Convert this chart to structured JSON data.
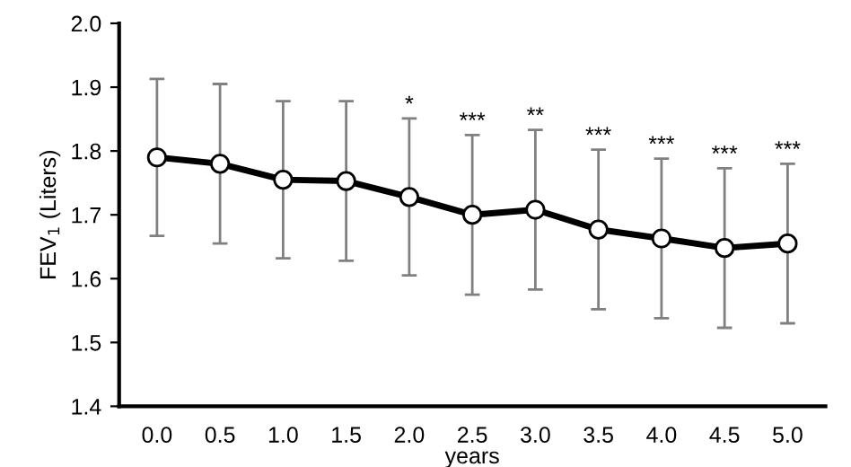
{
  "chart_data": {
    "type": "line",
    "xlabel": "years",
    "ylabel": "FEV$_{1}$ (Liters)",
    "x": [
      0.0,
      0.5,
      1.0,
      1.5,
      2.0,
      2.5,
      3.0,
      3.5,
      4.0,
      4.5,
      5.0
    ],
    "series": [
      {
        "color": "#000000",
        "values": [
          1.79,
          1.78,
          1.755,
          1.753,
          1.728,
          1.7,
          1.708,
          1.677,
          1.663,
          1.648,
          1.655
        ],
        "errors": [
          0.123,
          0.125,
          0.123,
          0.125,
          0.123,
          0.125,
          0.125,
          0.125,
          0.125,
          0.125,
          0.125
        ]
      }
    ],
    "xlim": [
      -0.3,
      5.3
    ],
    "xticks": [
      {
        "value": 0,
        "label": "0.0"
      },
      0.5,
      {
        "value": 1,
        "label": "1.0"
      },
      1.5,
      {
        "value": 2,
        "label": "2.0"
      },
      2.5,
      {
        "value": 3,
        "label": "3.0"
      },
      3.5,
      {
        "value": 4,
        "label": "4.0"
      },
      4.5,
      {
        "value": 5,
        "label": "5.0"
      }
    ],
    "ylim": [
      1.4,
      2.0
    ],
    "yticks": [
      1.4,
      1.5,
      1.6,
      1.7,
      1.8,
      1.9,
      {
        "value": 2,
        "label": "2.0"
      }
    ],
    "marker": "circle",
    "line_style": "solid",
    "grid": false,
    "legend": false,
    "annotations": [
      {
        "text": "*",
        "x": 2.0,
        "y": 1.851
      },
      {
        "text": "***",
        "x": 2.5,
        "y": 1.825
      },
      {
        "text": "**",
        "x": 3.0,
        "y": 1.833
      },
      {
        "text": "***",
        "x": 3.5,
        "y": 1.802
      },
      {
        "text": "***",
        "x": 4.0,
        "y": 1.788
      },
      {
        "text": "***",
        "x": 4.5,
        "y": 1.773
      },
      {
        "text": "***",
        "x": 5.0,
        "y": 1.78
      }
    ]
  }
}
